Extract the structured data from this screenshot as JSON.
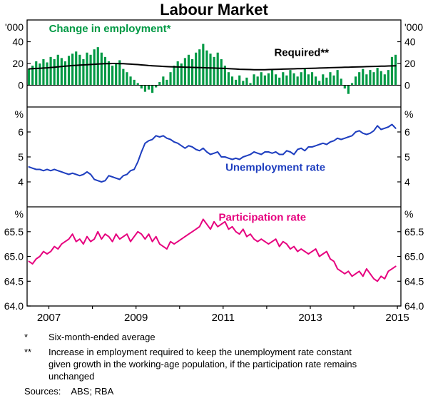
{
  "chart_data": {
    "type": "multi-panel-timeseries",
    "title": "Labour Market",
    "x_domain": [
      2006.5,
      2015.08
    ],
    "x_start": 2006.5417,
    "x_step": 0.0833333,
    "x_tick_years": [
      2007,
      2009,
      2011,
      2013,
      2015
    ],
    "x_minor_tick_years": [
      2007,
      2008,
      2009,
      2010,
      2011,
      2012,
      2013,
      2014,
      2015
    ],
    "frequency": "monthly",
    "panels": [
      {
        "name": "employment-panel",
        "unit_label": "'000",
        "ylim": [
          -20,
          60
        ],
        "yticks": [
          0,
          20,
          40
        ],
        "ytick_labels": [
          "0",
          "20",
          "40"
        ],
        "zero_line": true,
        "series": [
          {
            "name": "Change in employment*",
            "type": "bar",
            "color": "#009944",
            "values": [
              15,
              18,
              22,
              20,
              24,
              21,
              26,
              24,
              28,
              25,
              22,
              27,
              29,
              31,
              28,
              24,
              30,
              28,
              33,
              35,
              30,
              26,
              22,
              18,
              20,
              23,
              15,
              12,
              8,
              5,
              2,
              -3,
              -6,
              -4,
              -7,
              -2,
              3,
              8,
              5,
              12,
              18,
              22,
              20,
              25,
              28,
              24,
              30,
              33,
              38,
              32,
              29,
              26,
              30,
              24,
              18,
              12,
              8,
              5,
              9,
              4,
              7,
              2,
              10,
              8,
              12,
              9,
              11,
              14,
              10,
              7,
              12,
              9,
              14,
              11,
              8,
              12,
              15,
              10,
              12,
              8,
              4,
              10,
              7,
              12,
              9,
              14,
              6,
              -3,
              -8,
              2,
              8,
              12,
              15,
              10,
              14,
              12,
              16,
              13,
              10,
              14,
              26,
              28
            ]
          },
          {
            "name": "Required**",
            "type": "line",
            "color": "#000000",
            "values": [
              15.0,
              15.2,
              15.4,
              15.6,
              15.8,
              16.0,
              16.3,
              16.6,
              16.9,
              17.2,
              17.5,
              17.8,
              18.1,
              18.3,
              18.5,
              18.7,
              18.9,
              19.1,
              19.3,
              19.5,
              19.7,
              19.8,
              19.9,
              20.0,
              20.0,
              19.9,
              19.8,
              19.6,
              19.4,
              19.2,
              19.0,
              18.7,
              18.4,
              18.1,
              17.9,
              17.7,
              17.5,
              17.3,
              17.1,
              17.0,
              16.9,
              16.8,
              16.7,
              16.6,
              16.5,
              16.4,
              16.3,
              16.2,
              16.1,
              16.0,
              15.9,
              15.8,
              15.7,
              15.6,
              15.5,
              15.3,
              15.1,
              14.9,
              14.7,
              14.6,
              14.5,
              14.4,
              14.3,
              14.3,
              14.3,
              14.3,
              14.4,
              14.5,
              14.6,
              14.7,
              14.8,
              14.9,
              15.0,
              15.1,
              15.2,
              15.3,
              15.4,
              15.5,
              15.6,
              15.7,
              15.8,
              15.9,
              16.0,
              16.1,
              16.2,
              16.3,
              16.4,
              16.5,
              16.6,
              16.7,
              16.8,
              16.9,
              17.0,
              17.1,
              17.2,
              17.3,
              17.4,
              17.5,
              17.6,
              17.7,
              17.8,
              17.9
            ]
          }
        ],
        "labels": [
          {
            "text": "Change in employment*",
            "x": 2008.4,
            "y": 49,
            "color": "#009944"
          },
          {
            "text": "Required**",
            "x": 2012.8,
            "y": 27,
            "color": "#000000"
          }
        ]
      },
      {
        "name": "unemployment-panel",
        "unit_label": "%",
        "ylim": [
          3,
          7
        ],
        "yticks": [
          4,
          5,
          6
        ],
        "ytick_labels": [
          "4",
          "5",
          "6"
        ],
        "zero_line": false,
        "series": [
          {
            "name": "Unemployment rate",
            "type": "line",
            "color": "#1E3EBF",
            "values": [
              4.6,
              4.55,
              4.5,
              4.5,
              4.45,
              4.5,
              4.45,
              4.5,
              4.45,
              4.4,
              4.35,
              4.3,
              4.35,
              4.3,
              4.25,
              4.3,
              4.4,
              4.3,
              4.1,
              4.05,
              4.0,
              4.05,
              4.25,
              4.2,
              4.15,
              4.1,
              4.25,
              4.3,
              4.45,
              4.5,
              4.8,
              5.2,
              5.55,
              5.65,
              5.7,
              5.85,
              5.8,
              5.85,
              5.75,
              5.7,
              5.6,
              5.55,
              5.45,
              5.35,
              5.45,
              5.4,
              5.3,
              5.25,
              5.35,
              5.2,
              5.1,
              5.15,
              5.2,
              5.0,
              5.0,
              4.95,
              4.9,
              4.95,
              4.9,
              5.0,
              5.05,
              5.1,
              5.2,
              5.15,
              5.1,
              5.2,
              5.2,
              5.15,
              5.2,
              5.1,
              5.1,
              5.25,
              5.2,
              5.1,
              5.3,
              5.35,
              5.25,
              5.4,
              5.4,
              5.45,
              5.5,
              5.55,
              5.5,
              5.6,
              5.65,
              5.75,
              5.7,
              5.75,
              5.8,
              5.85,
              6.0,
              6.05,
              5.95,
              5.9,
              5.95,
              6.05,
              6.25,
              6.1,
              6.15,
              6.2,
              6.3,
              6.15
            ]
          }
        ],
        "labels": [
          {
            "text": "Unemployment rate",
            "x": 2012.2,
            "y": 4.45,
            "color": "#1E3EBF"
          }
        ]
      },
      {
        "name": "participation-panel",
        "unit_label": "%",
        "ylim": [
          64.0,
          66.0
        ],
        "yticks": [
          64.0,
          64.5,
          65.0,
          65.5
        ],
        "ytick_labels": [
          "64.0",
          "64.5",
          "65.0",
          "65.5"
        ],
        "zero_line": false,
        "series": [
          {
            "name": "Participation rate",
            "type": "line",
            "color": "#E6007E",
            "values": [
              64.9,
              64.85,
              64.95,
              65.0,
              65.1,
              65.05,
              65.1,
              65.2,
              65.15,
              65.25,
              65.3,
              65.35,
              65.45,
              65.3,
              65.35,
              65.25,
              65.4,
              65.3,
              65.35,
              65.5,
              65.35,
              65.45,
              65.4,
              65.3,
              65.45,
              65.35,
              65.4,
              65.45,
              65.3,
              65.4,
              65.5,
              65.45,
              65.35,
              65.45,
              65.3,
              65.4,
              65.25,
              65.2,
              65.15,
              65.3,
              65.25,
              65.3,
              65.35,
              65.4,
              65.45,
              65.5,
              65.55,
              65.6,
              65.75,
              65.65,
              65.55,
              65.7,
              65.6,
              65.65,
              65.7,
              65.55,
              65.6,
              65.5,
              65.45,
              65.55,
              65.4,
              65.45,
              65.35,
              65.3,
              65.35,
              65.3,
              65.25,
              65.3,
              65.35,
              65.2,
              65.3,
              65.25,
              65.15,
              65.2,
              65.1,
              65.15,
              65.1,
              65.05,
              65.1,
              65.15,
              65.0,
              65.05,
              65.1,
              64.95,
              64.9,
              64.75,
              64.7,
              64.65,
              64.7,
              64.6,
              64.65,
              64.7,
              64.6,
              64.75,
              64.65,
              64.55,
              64.5,
              64.6,
              64.55,
              64.7,
              64.75,
              64.8
            ]
          }
        ],
        "labels": [
          {
            "text": "Participation rate",
            "x": 2011.9,
            "y": 65.72,
            "color": "#E6007E"
          }
        ]
      }
    ]
  },
  "footnotes": [
    {
      "marker": "*",
      "text": "Six-month-ended average"
    },
    {
      "marker": "**",
      "text": "Increase in employment required to keep the unemployment rate constant given growth in the working-age population, if the participation rate remains unchanged"
    }
  ],
  "sources_label": "Sources:",
  "sources_text": "ABS; RBA"
}
